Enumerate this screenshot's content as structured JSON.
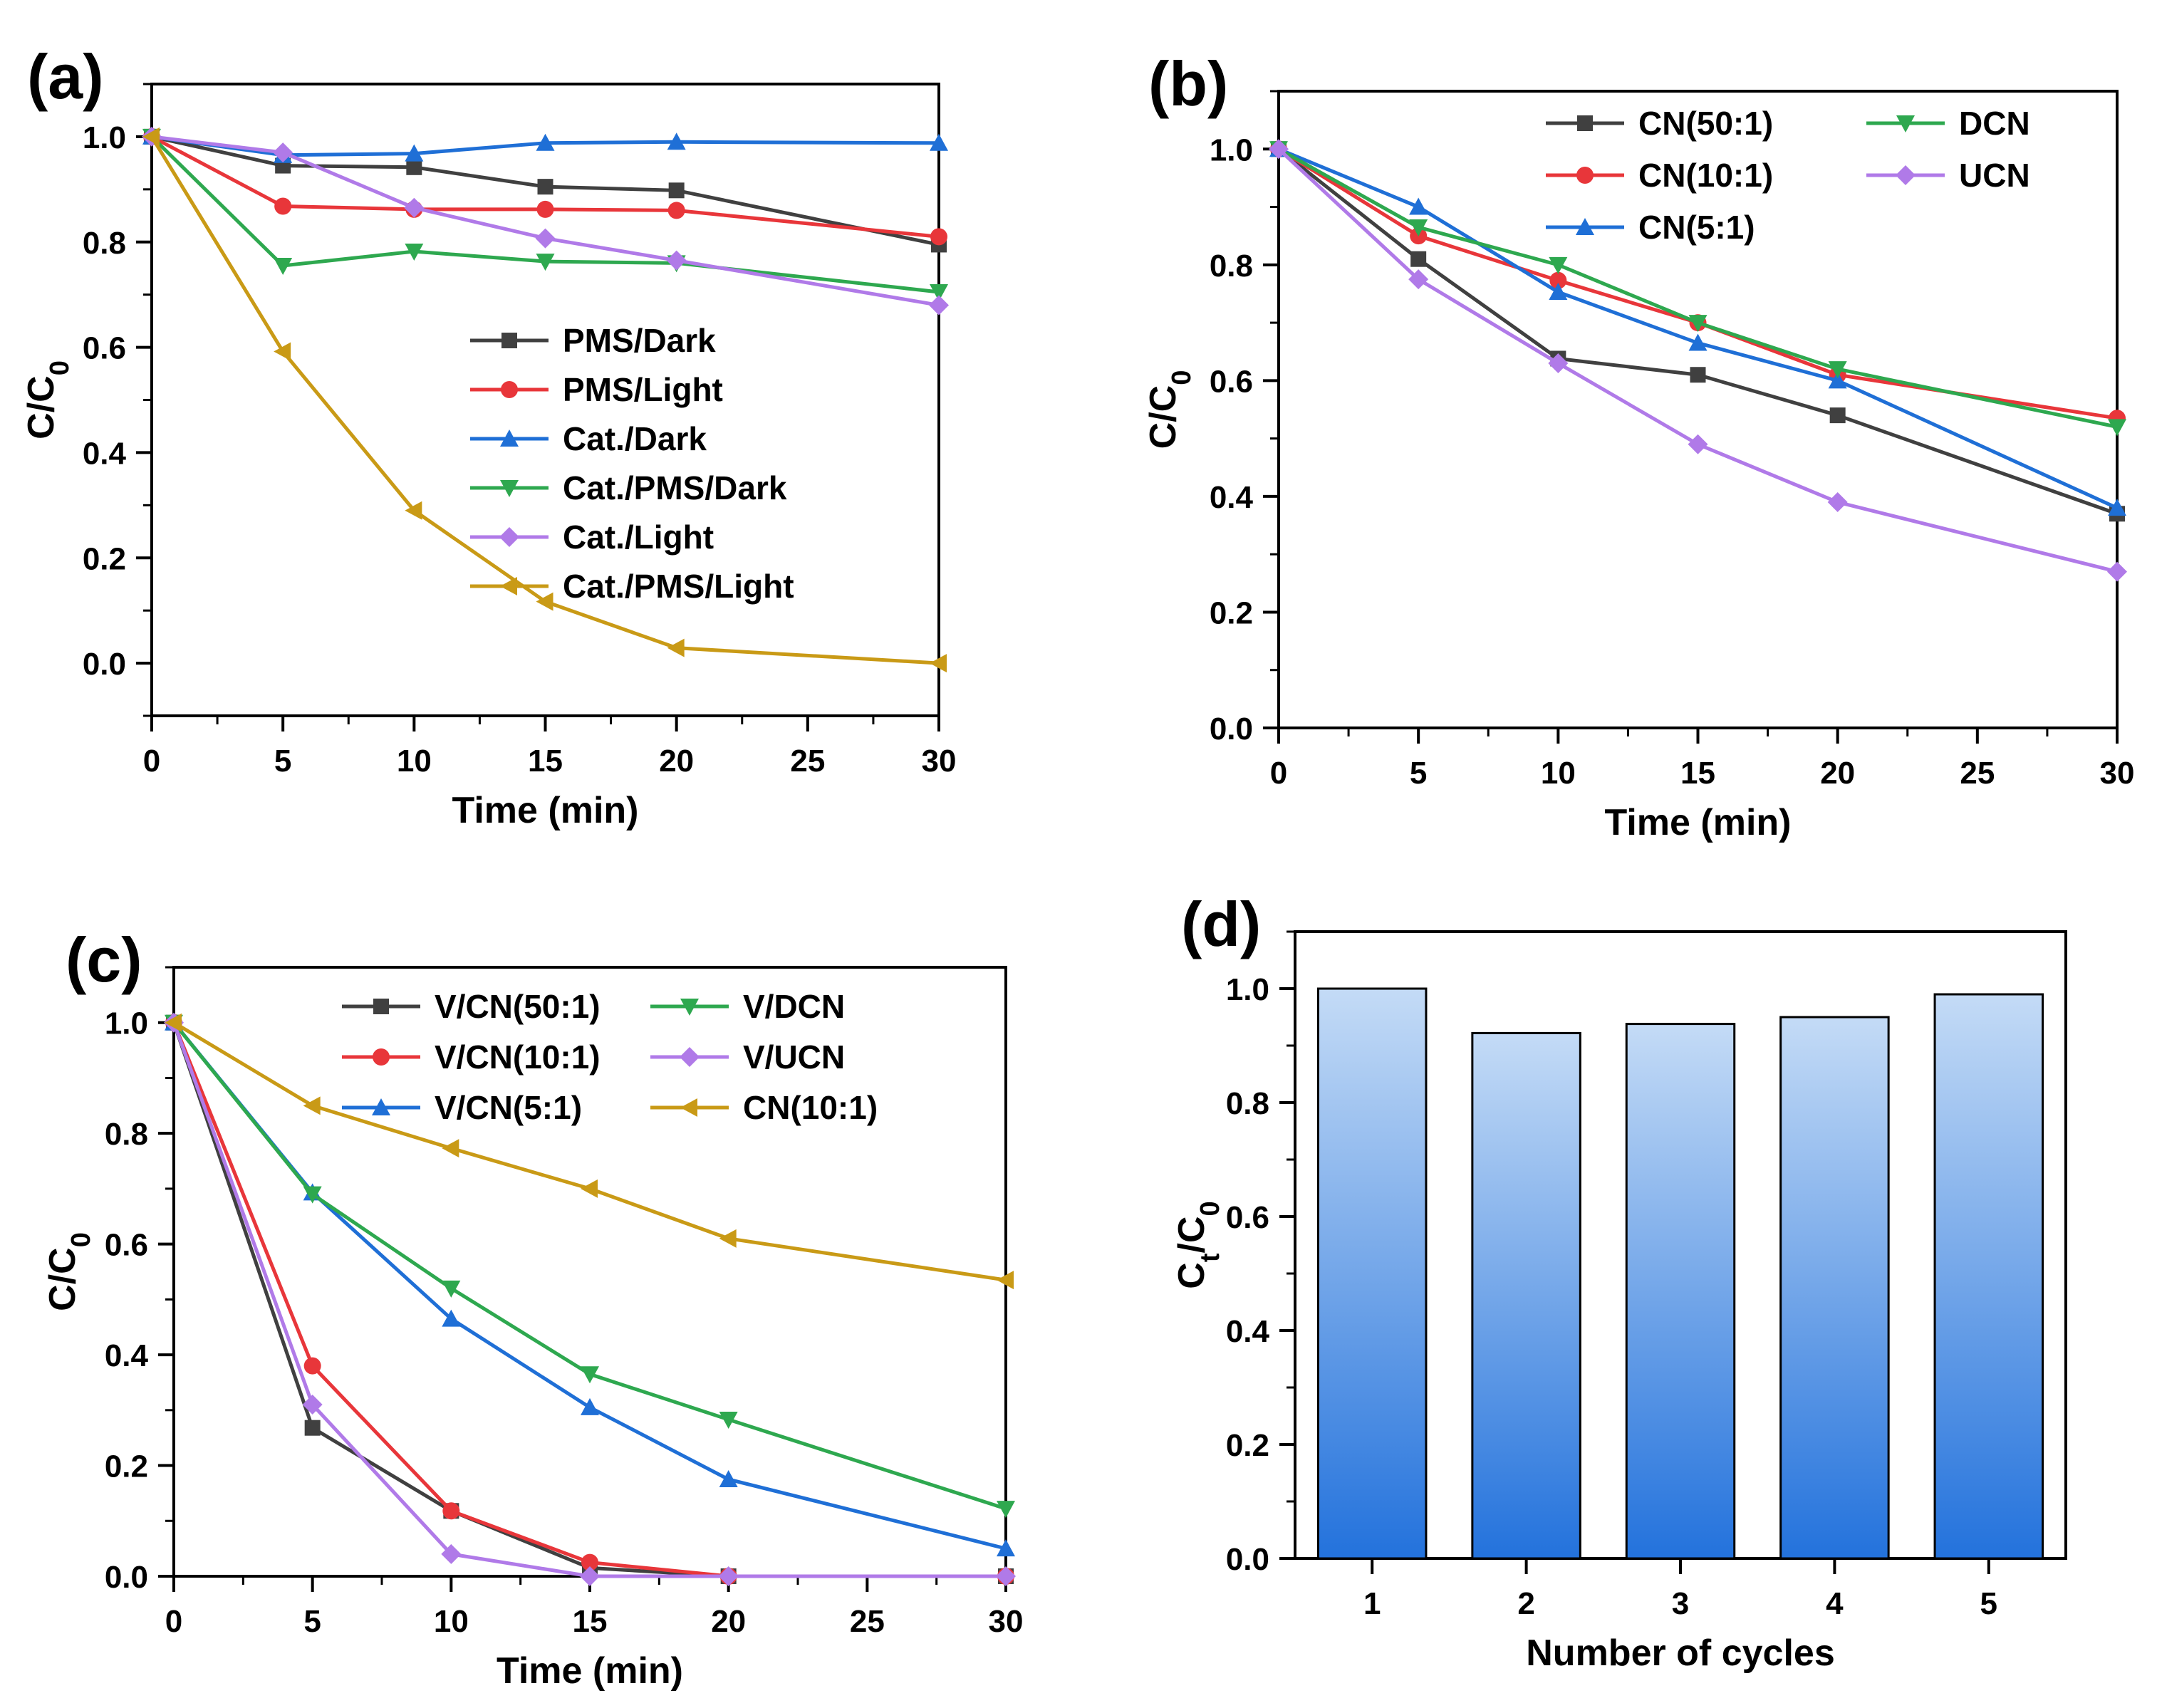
{
  "chart_data": [
    {
      "type": "line",
      "panel_label": "(a)",
      "xlabel": "Time (min)",
      "ylabel": "C/C",
      "ylabel_sub": "0",
      "xlim": [
        0,
        30
      ],
      "ylim": [
        -0.1,
        1.1
      ],
      "xticks": [
        "0",
        "5",
        "10",
        "15",
        "20",
        "25",
        "30"
      ],
      "yticks": [
        "0.0",
        "0.2",
        "0.4",
        "0.6",
        "0.8",
        "1.0"
      ],
      "x": [
        0,
        5,
        10,
        15,
        20,
        30
      ],
      "series": [
        {
          "name": "PMS/Dark",
          "color": "#404040",
          "marker": "square",
          "values": [
            1.0,
            0.945,
            0.942,
            0.905,
            0.898,
            0.795
          ]
        },
        {
          "name": "PMS/Light",
          "color": "#e8363a",
          "marker": "circle",
          "values": [
            1.0,
            0.868,
            0.862,
            0.862,
            0.86,
            0.81
          ]
        },
        {
          "name": "Cat./Dark",
          "color": "#1f6fd6",
          "marker": "triangle-up",
          "values": [
            1.0,
            0.965,
            0.968,
            0.988,
            0.99,
            0.988
          ]
        },
        {
          "name": "Cat./PMS/Dark",
          "color": "#2ea84f",
          "marker": "triangle-down",
          "values": [
            1.0,
            0.755,
            0.782,
            0.763,
            0.76,
            0.705
          ]
        },
        {
          "name": "Cat./Light",
          "color": "#b07ae8",
          "marker": "diamond",
          "values": [
            1.0,
            0.97,
            0.865,
            0.807,
            0.765,
            0.68
          ]
        },
        {
          "name": "Cat./PMS/Light",
          "color": "#c99a16",
          "marker": "triangle-left",
          "values": [
            1.0,
            0.592,
            0.29,
            0.117,
            0.029,
            0.0
          ]
        }
      ]
    },
    {
      "type": "line",
      "panel_label": "(b)",
      "xlabel": "Time (min)",
      "ylabel": "C/C",
      "ylabel_sub": "0",
      "xlim": [
        0,
        30
      ],
      "ylim": [
        0,
        1.1
      ],
      "xticks": [
        "0",
        "5",
        "10",
        "15",
        "20",
        "25",
        "30"
      ],
      "yticks": [
        "0.0",
        "0.2",
        "0.4",
        "0.6",
        "0.8",
        "1.0"
      ],
      "x": [
        0,
        5,
        10,
        15,
        20,
        30
      ],
      "series": [
        {
          "name": "CN(50:1)",
          "color": "#404040",
          "marker": "square",
          "values": [
            1.0,
            0.81,
            0.638,
            0.61,
            0.54,
            0.37
          ]
        },
        {
          "name": "CN(10:1)",
          "color": "#e8363a",
          "marker": "circle",
          "values": [
            1.0,
            0.85,
            0.773,
            0.7,
            0.61,
            0.535
          ]
        },
        {
          "name": "CN(5:1)",
          "color": "#1f6fd6",
          "marker": "triangle-up",
          "values": [
            1.0,
            0.9,
            0.753,
            0.665,
            0.6,
            0.38
          ]
        },
        {
          "name": "DCN",
          "color": "#2ea84f",
          "marker": "triangle-down",
          "values": [
            1.0,
            0.865,
            0.8,
            0.7,
            0.62,
            0.52
          ]
        },
        {
          "name": "UCN",
          "color": "#b07ae8",
          "marker": "diamond",
          "values": [
            1.0,
            0.775,
            0.63,
            0.49,
            0.39,
            0.27
          ]
        }
      ]
    },
    {
      "type": "line",
      "panel_label": "(c)",
      "xlabel": "Time (min)",
      "ylabel": "C/C",
      "ylabel_sub": "0",
      "xlim": [
        0,
        30
      ],
      "ylim": [
        0,
        1.1
      ],
      "xticks": [
        "0",
        "5",
        "10",
        "15",
        "20",
        "25",
        "30"
      ],
      "yticks": [
        "0.0",
        "0.2",
        "0.4",
        "0.6",
        "0.8",
        "1.0"
      ],
      "x": [
        0,
        5,
        10,
        15,
        20,
        30
      ],
      "series": [
        {
          "name": "V/CN(50:1)",
          "color": "#404040",
          "marker": "square",
          "values": [
            1.0,
            0.268,
            0.118,
            0.015,
            0.0,
            0.0
          ]
        },
        {
          "name": "V/CN(10:1)",
          "color": "#e8363a",
          "marker": "circle",
          "values": [
            1.0,
            0.38,
            0.118,
            0.025,
            0.0,
            0.0
          ]
        },
        {
          "name": "V/CN(5:1)",
          "color": "#1f6fd6",
          "marker": "triangle-up",
          "values": [
            1.0,
            0.693,
            0.465,
            0.305,
            0.175,
            0.05
          ]
        },
        {
          "name": "V/DCN",
          "color": "#2ea84f",
          "marker": "triangle-down",
          "values": [
            1.0,
            0.69,
            0.52,
            0.365,
            0.283,
            0.122
          ]
        },
        {
          "name": "V/UCN",
          "color": "#b07ae8",
          "marker": "diamond",
          "values": [
            1.0,
            0.31,
            0.04,
            0.0,
            0.0,
            0.0
          ]
        },
        {
          "name": "CN(10:1)",
          "color": "#c99a16",
          "marker": "triangle-left",
          "values": [
            1.0,
            0.85,
            0.773,
            0.7,
            0.61,
            0.535
          ]
        }
      ]
    },
    {
      "type": "bar",
      "panel_label": "(d)",
      "xlabel": "Number of cycles",
      "ylabel": "C",
      "ylabel_sub1": "t",
      "ylabel_mid": "/C",
      "ylabel_sub2": "0",
      "ylim": [
        0,
        1.1
      ],
      "categories": [
        "1",
        "2",
        "3",
        "4",
        "5"
      ],
      "yticks": [
        "0.0",
        "0.2",
        "0.4",
        "0.6",
        "0.8",
        "1.0"
      ],
      "values": [
        1.0,
        0.922,
        0.938,
        0.95,
        0.99
      ],
      "bar_color_top": "#c4dbf6",
      "bar_color_bottom": "#2372dc"
    }
  ]
}
